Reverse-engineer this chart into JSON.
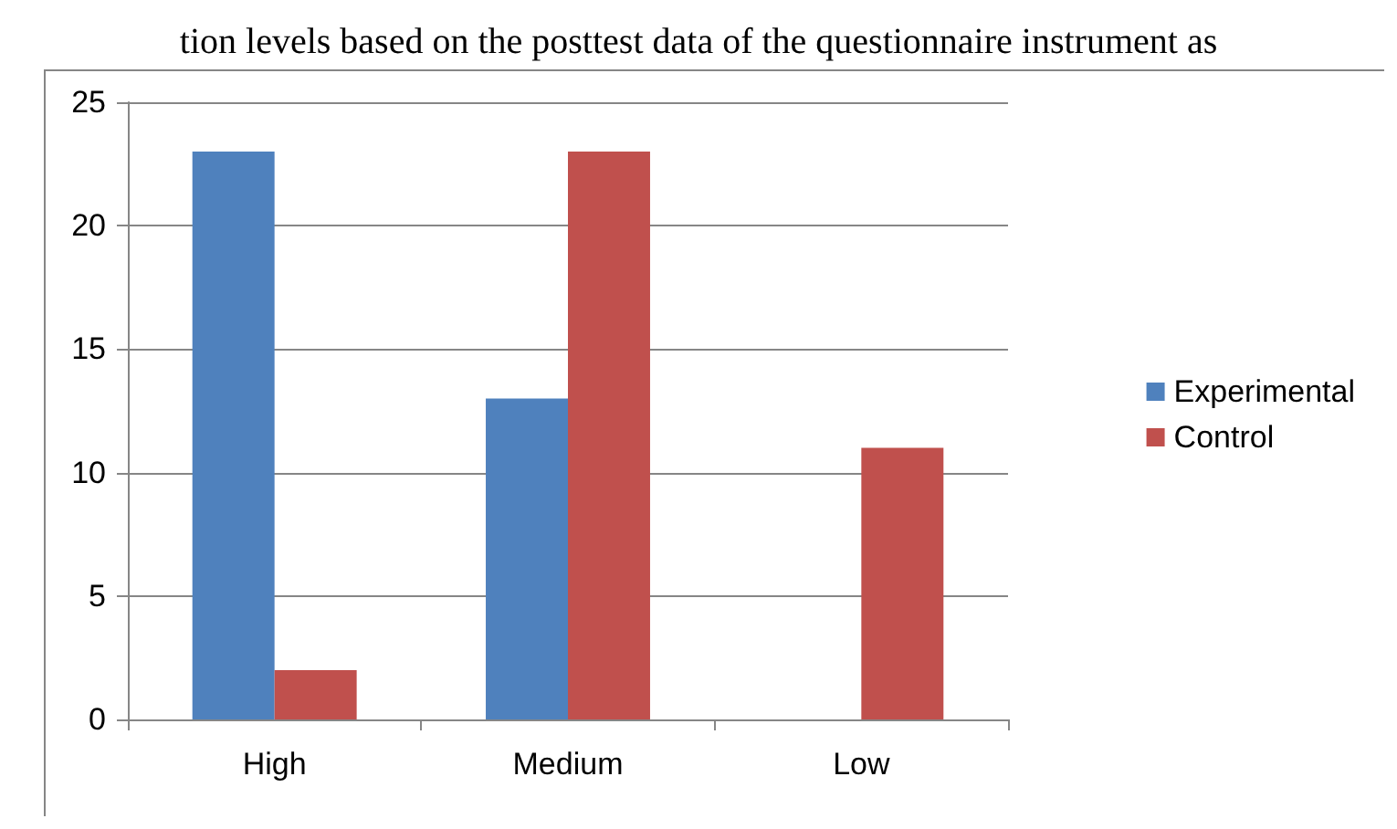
{
  "chart_data": {
    "type": "bar",
    "title": "tion levels based on the posttest data of the questionnaire instrument as",
    "categories": [
      "High",
      "Medium",
      "Low"
    ],
    "series": [
      {
        "name": "Experimental",
        "color": "#4f81bd",
        "values": [
          23,
          13,
          0
        ]
      },
      {
        "name": "Control",
        "color": "#c0504d",
        "values": [
          2,
          23,
          11
        ]
      }
    ],
    "ylim": [
      0,
      25
    ],
    "yticks": [
      0,
      5,
      10,
      15,
      20,
      25
    ],
    "grid": "y",
    "legend": "right"
  }
}
